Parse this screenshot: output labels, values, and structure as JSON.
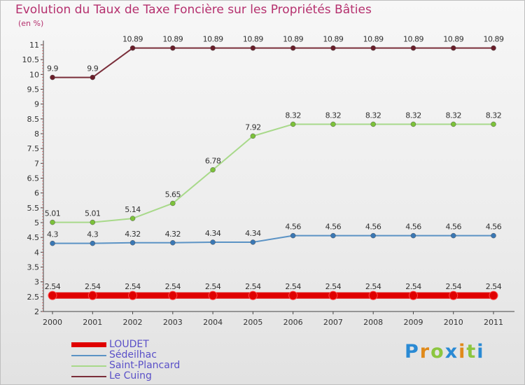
{
  "chart_data": {
    "type": "line",
    "title": "Evolution du Taux de Taxe Foncière sur les Propriétés Bâties",
    "unit_label": "(en %)",
    "categories": [
      "2000",
      "2001",
      "2002",
      "2003",
      "2004",
      "2005",
      "2006",
      "2007",
      "2008",
      "2009",
      "2010",
      "2011"
    ],
    "ylim": [
      2,
      11
    ],
    "yticks": [
      "2",
      "2.5",
      "3",
      "3.5",
      "4",
      "4.5",
      "5",
      "5.5",
      "6",
      "6.5",
      "7",
      "7.5",
      "8",
      "8.5",
      "9",
      "9.5",
      "10",
      "10.5",
      "11"
    ],
    "series": [
      {
        "name": "LOUDET",
        "color": "#e00000",
        "values": [
          2.54,
          2.54,
          2.54,
          2.54,
          2.54,
          2.54,
          2.54,
          2.54,
          2.54,
          2.54,
          2.54,
          2.54
        ],
        "labels": [
          "2.54",
          "2.54",
          "2.54",
          "2.54",
          "2.54",
          "2.54",
          "2.54",
          "2.54",
          "2.54",
          "2.54",
          "2.54",
          "2.54"
        ]
      },
      {
        "name": "Sédeilhac",
        "color": "#5b93c5",
        "values": [
          4.3,
          4.3,
          4.32,
          4.32,
          4.34,
          4.34,
          4.56,
          4.56,
          4.56,
          4.56,
          4.56,
          4.56
        ],
        "labels": [
          "4.3",
          "4.3",
          "4.32",
          "4.32",
          "4.34",
          "4.34",
          "4.56",
          "4.56",
          "4.56",
          "4.56",
          "4.56",
          "4.56"
        ]
      },
      {
        "name": "Saint-Plancard",
        "color": "#a8d98a",
        "values": [
          5.01,
          5.01,
          5.14,
          5.65,
          6.78,
          7.92,
          8.32,
          8.32,
          8.32,
          8.32,
          8.32,
          8.32
        ],
        "labels": [
          "5.01",
          "5.01",
          "5.14",
          "5.65",
          "6.78",
          "7.92",
          "8.32",
          "8.32",
          "8.32",
          "8.32",
          "8.32",
          "8.32"
        ]
      },
      {
        "name": "Le Cuing",
        "color": "#7a2e3a",
        "values": [
          9.9,
          9.9,
          10.89,
          10.89,
          10.89,
          10.89,
          10.89,
          10.89,
          10.89,
          10.89,
          10.89,
          10.89
        ],
        "labels": [
          "9.9",
          "9.9",
          "10.89",
          "10.89",
          "10.89",
          "10.89",
          "10.89",
          "10.89",
          "10.89",
          "10.89",
          "10.89",
          "10.89"
        ]
      }
    ]
  },
  "logo": [
    "P",
    "r",
    "o",
    "x",
    "i",
    "t",
    "i"
  ]
}
